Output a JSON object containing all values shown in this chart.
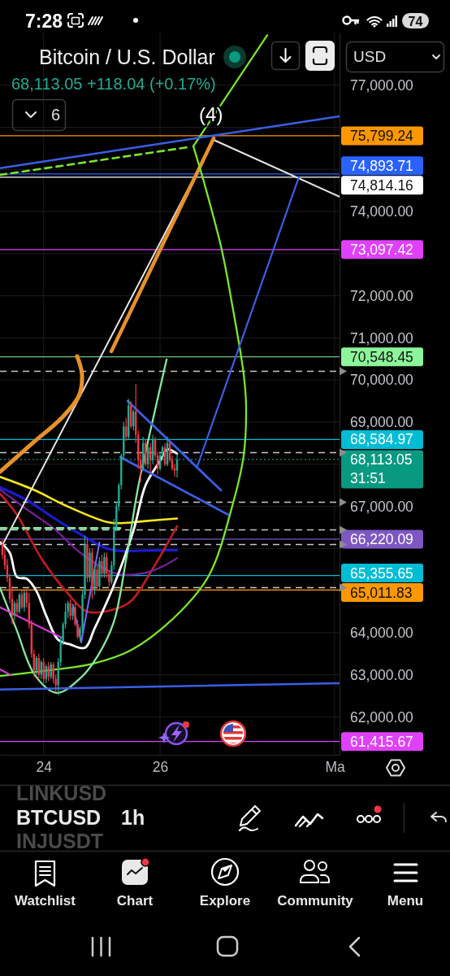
{
  "chart_data": {
    "type": "candlestick",
    "title": "Bitcoin / U.S. Dollar",
    "subtitle": "68,113.05 +118.04 (+0.17%)",
    "x": [
      23.292,
      23.333,
      23.375,
      23.417,
      23.458,
      23.5,
      23.542,
      23.583,
      23.625,
      23.667,
      23.708,
      23.75,
      23.792,
      23.833,
      23.875,
      23.917,
      23.958,
      24,
      24.042,
      24.083,
      24.125,
      24.167,
      24.208,
      24.25,
      24.292,
      24.333,
      24.375,
      24.417,
      24.458,
      24.5,
      24.542,
      24.583,
      24.625,
      24.667,
      24.708,
      24.75,
      24.792,
      24.833,
      24.875,
      24.917,
      24.958,
      25,
      25.042,
      25.083,
      25.125,
      25.167,
      25.208,
      25.25,
      25.292,
      25.333,
      25.375,
      25.417,
      25.458,
      25.5,
      25.542,
      25.583,
      25.625,
      25.667,
      25.708,
      25.75,
      25.792,
      25.833,
      25.875,
      25.917,
      25.958,
      26,
      26.042,
      26.083,
      26.125,
      26.167,
      26.208,
      26.25,
      26.292
    ],
    "ohlc": [
      [
        66100,
        66200,
        65750,
        65850
      ],
      [
        65850,
        66000,
        65500,
        65600
      ],
      [
        65600,
        65750,
        65200,
        65300
      ],
      [
        65300,
        65400,
        64700,
        64800
      ],
      [
        64800,
        65100,
        64200,
        64400
      ],
      [
        64400,
        64750,
        64300,
        64700
      ],
      [
        64700,
        64800,
        64400,
        64500
      ],
      [
        64500,
        64950,
        64450,
        64900
      ],
      [
        64900,
        65000,
        64550,
        64600
      ],
      [
        64600,
        65000,
        64500,
        64950
      ],
      [
        64950,
        65050,
        64600,
        64700
      ],
      [
        64700,
        64950,
        64100,
        64200
      ],
      [
        64200,
        64300,
        63400,
        63500
      ],
      [
        63500,
        63600,
        62950,
        63100
      ],
      [
        63100,
        63450,
        63000,
        63400
      ],
      [
        63400,
        63500,
        62900,
        63000
      ],
      [
        63000,
        63350,
        62900,
        63300
      ],
      [
        63300,
        63400,
        62800,
        62900
      ],
      [
        62900,
        63250,
        62800,
        63200
      ],
      [
        63200,
        63300,
        62850,
        62950
      ],
      [
        62950,
        63300,
        62900,
        63250
      ],
      [
        63250,
        63300,
        62800,
        62900
      ],
      [
        62900,
        63000,
        62600,
        62750
      ],
      [
        62750,
        63400,
        62520,
        63300
      ],
      [
        63300,
        63900,
        63200,
        63800
      ],
      [
        63800,
        64250,
        63700,
        64200
      ],
      [
        64200,
        64700,
        64100,
        64500
      ],
      [
        64500,
        64750,
        64350,
        64700
      ],
      [
        64700,
        64800,
        64300,
        64400
      ],
      [
        64400,
        64650,
        64300,
        64600
      ],
      [
        64600,
        64700,
        64150,
        64200
      ],
      [
        64200,
        64300,
        63850,
        63900
      ],
      [
        63900,
        64150,
        63800,
        64100
      ],
      [
        64100,
        65000,
        64000,
        64900
      ],
      [
        64900,
        66300,
        64800,
        66100
      ],
      [
        66100,
        66250,
        65200,
        65300
      ],
      [
        65300,
        66000,
        65200,
        65900
      ],
      [
        65900,
        66000,
        64800,
        65000
      ],
      [
        65000,
        65600,
        64900,
        65500
      ],
      [
        65500,
        65600,
        65000,
        65100
      ],
      [
        65100,
        65800,
        65000,
        65700
      ],
      [
        65700,
        65850,
        65300,
        65400
      ],
      [
        65400,
        65900,
        65300,
        65800
      ],
      [
        65800,
        65900,
        65300,
        65400
      ],
      [
        65400,
        65500,
        65100,
        65200
      ],
      [
        65200,
        65700,
        65150,
        65600
      ],
      [
        65600,
        66700,
        65500,
        66500
      ],
      [
        66500,
        67100,
        66400,
        67000
      ],
      [
        67000,
        67550,
        66900,
        67500
      ],
      [
        67500,
        68250,
        67400,
        68200
      ],
      [
        68200,
        69000,
        68100,
        68900
      ],
      [
        68900,
        69100,
        68550,
        68650
      ],
      [
        68650,
        69550,
        68600,
        69400
      ],
      [
        69400,
        69500,
        68850,
        68900
      ],
      [
        68900,
        69300,
        68800,
        69250
      ],
      [
        69250,
        69900,
        68500,
        68700
      ],
      [
        68700,
        68800,
        67900,
        68100
      ],
      [
        68100,
        68300,
        67580,
        67900
      ],
      [
        67900,
        68650,
        67850,
        68500
      ],
      [
        68500,
        68600,
        67950,
        68000
      ],
      [
        68000,
        68450,
        67900,
        68400
      ],
      [
        68400,
        68500,
        67800,
        68100
      ],
      [
        68100,
        68700,
        68000,
        68600
      ],
      [
        68600,
        68650,
        68150,
        68200
      ],
      [
        68200,
        68300,
        67750,
        67900
      ],
      [
        67900,
        68250,
        67850,
        68200
      ],
      [
        68200,
        68450,
        68100,
        68400
      ],
      [
        68400,
        68500,
        67950,
        68000
      ],
      [
        68000,
        68650,
        67950,
        68500
      ],
      [
        68500,
        68550,
        68050,
        68100
      ],
      [
        68100,
        68200,
        67850,
        67900
      ],
      [
        67900,
        68000,
        67700,
        67850
      ],
      [
        67850,
        68250,
        67680,
        68113.05
      ]
    ],
    "xlim": [
      23.25,
      29.083
    ],
    "xticks": [
      24,
      26,
      {
        "value": 29,
        "label": "Ma"
      }
    ],
    "ylim": [
      61100,
      78250
    ],
    "yticks": [
      {
        "value": 62000,
        "label": "62,000.00"
      },
      {
        "value": 63000,
        "label": "63,000.00"
      },
      {
        "value": 64000,
        "label": "64,000.00"
      },
      {
        "value": 65000,
        "label": null
      },
      {
        "value": 66000,
        "label": null
      },
      {
        "value": 67000,
        "label": "67,000.00"
      },
      {
        "value": 68000,
        "label": null
      },
      {
        "value": 69000,
        "label": "69,000.00"
      },
      {
        "value": 70000,
        "label": "70,000.00"
      },
      {
        "value": 71000,
        "label": "71,000.00"
      },
      {
        "value": 72000,
        "label": "72,000.00"
      },
      {
        "value": 73000,
        "label": null
      },
      {
        "value": 74000,
        "label": "74,000.00"
      },
      {
        "value": 75000,
        "label": null
      },
      {
        "value": 76000,
        "label": null
      },
      {
        "value": 77000,
        "label": "77,000.00"
      }
    ],
    "grid": true,
    "series": [
      {
        "type": "line",
        "x": [
          23.25,
          23.833,
          24.375,
          25.083,
          25.333,
          25.75,
          26.292
        ],
        "values": [
          67700,
          67390,
          67020,
          66630,
          66600,
          66650,
          66710
        ],
        "color": "#f5e71d"
      },
      {
        "type": "line",
        "x": [
          23.25,
          23.708,
          24.167,
          24.625,
          25.083,
          25.333,
          25.75,
          26.292
        ],
        "values": [
          67450,
          67150,
          66730,
          66340,
          66000,
          65940,
          65950,
          65960
        ],
        "color": "#1b1bd0"
      },
      {
        "type": "line",
        "x": [
          23.25,
          23.542,
          23.958,
          24.417,
          24.75,
          25.208,
          25.5,
          25.875,
          26.292
        ],
        "values": [
          67300,
          66800,
          65770,
          64930,
          64500,
          64550,
          64750,
          65520,
          66530
        ],
        "color": "#c41c1c"
      },
      {
        "type": "line",
        "x": [
          23.25,
          23.708,
          24.167,
          24.625,
          25.125,
          25.333,
          25.75,
          26.042,
          26.292
        ],
        "values": [
          67400,
          66930,
          66480,
          65900,
          65460,
          65380,
          65420,
          65570,
          65770
        ],
        "color": "#7a1fa0"
      },
      {
        "type": "line",
        "x": [
          23.25,
          23.417,
          23.542,
          23.708,
          23.875,
          24.042,
          24.25,
          24.458,
          24.708,
          24.875,
          25.167,
          25.542,
          25.75,
          26,
          26.125,
          26.292
        ],
        "values": [
          66150,
          65900,
          65320,
          65280,
          64990,
          64410,
          63830,
          63720,
          63640,
          64100,
          64990,
          66420,
          67500,
          68080,
          68350,
          68250
        ],
        "color": "#ffffff"
      },
      {
        "type": "line",
        "x": [
          23.292,
          26.921,
          29.083
        ],
        "values": [
          66080,
          75700,
          74350
        ],
        "color": "#e6e6e6"
      },
      {
        "type": "line",
        "x": [
          25.163,
          26.921
        ],
        "values": [
          70680,
          75740
        ],
        "color": "#e8902a"
      },
      {
        "type": "line",
        "x": [
          23.25,
          23.808,
          24.296,
          24.604,
          24.658,
          24.575
        ],
        "values": [
          67820,
          68500,
          69080,
          69620,
          70140,
          70560
        ],
        "color": "#e8902a"
      },
      {
        "type": "line",
        "x": [
          23.25,
          24.227,
          24.841,
          25.483,
          26.236,
          26.836,
          27.241,
          27.436,
          27.478,
          27.436,
          27.227,
          27.06,
          26.739,
          26.571
        ],
        "values": [
          62970,
          63130,
          63260,
          63570,
          64350,
          65350,
          67010,
          68210,
          69370,
          70140,
          71880,
          73090,
          74770,
          75550
        ],
        "color": "#7ae62b"
      },
      {
        "type": "line",
        "x": [
          26.571,
          27.842
        ],
        "values": [
          75550,
          78190
        ],
        "color": "#7ae62b"
      },
      {
        "type": "line",
        "x": [
          23.25,
          26.5
        ],
        "values": [
          74870,
          75530
        ],
        "color": "#7ae62b",
        "line_style": "dashed"
      },
      {
        "type": "line",
        "x": [
          23.25,
          23.529,
          23.85,
          24.225,
          24.646,
          24.925,
          25.204,
          25.413,
          25.621,
          25.833,
          26.113
        ],
        "values": [
          65060,
          64090,
          62990,
          62570,
          62940,
          63440,
          64250,
          65700,
          67440,
          68790,
          70490
        ],
        "color": "#86e8a0"
      },
      {
        "type": "line",
        "x": [
          23.25,
          25.333
        ],
        "values": [
          66480,
          66480
        ],
        "color": "#86e8a0",
        "line_style": "dashed"
      },
      {
        "type": "line",
        "x": [
          23.25,
          29.083
        ],
        "values": [
          75030,
          76260
        ],
        "color": "#3a5fe5"
      },
      {
        "type": "line",
        "x": [
          26.642,
          28.383
        ],
        "values": [
          67960,
          74810
        ],
        "color": "#3a5fe5"
      },
      {
        "type": "line",
        "x": [
          25.442,
          27.046
        ],
        "values": [
          69500,
          67380
        ],
        "color": "#3a5fe5"
      },
      {
        "type": "line",
        "x": [
          25.317,
          27.171
        ],
        "values": [
          68170,
          66800
        ],
        "color": "#3a5fe5"
      },
      {
        "type": "line",
        "x": [
          23.25,
          29.083
        ],
        "values": [
          62650,
          62800
        ],
        "color": "#3a5fe5"
      },
      {
        "type": "line",
        "x": [
          24.5,
          24.646,
          24.958
        ],
        "values": [
          64670,
          63770,
          66140
        ],
        "color": "#7b6cf0"
      },
      {
        "type": "line",
        "x": [
          23.25,
          24.31
        ],
        "values": [
          64600,
          63880
        ],
        "color": "#d63ad6"
      },
      {
        "type": "line",
        "x": [
          23.25,
          23.438
        ],
        "values": [
          63130,
          62990
        ],
        "color": "#d63ad6"
      }
    ],
    "ref_lines": [
      {
        "axis": "y",
        "value": 75799.24,
        "label": "75,799.24",
        "color": "#ff9800"
      },
      {
        "axis": "y",
        "value": 74893.71,
        "label": "74,893.71",
        "color": "#2962ff"
      },
      {
        "axis": "y",
        "value": 74814.16,
        "label": "74,814.16",
        "color": "#ffffff"
      },
      {
        "axis": "y",
        "value": 73097.42,
        "label": "73,097.42",
        "color": "#e040fb"
      },
      {
        "axis": "y",
        "value": 70548.45,
        "label": "70,548.45",
        "color": "#8cf59a"
      },
      {
        "axis": "y",
        "value": 68584.97,
        "label": "68,584.97",
        "color": "#00bcd4"
      },
      {
        "axis": "y",
        "value": 68113.05,
        "label": "68,113.05",
        "color": "#089981",
        "line_style": "dotted"
      },
      {
        "axis": "y",
        "value": 66220.09,
        "label": "66,220.09",
        "color": "#7e57c2"
      },
      {
        "axis": "y",
        "value": 65355.65,
        "label": "65,355.65",
        "color": "#00bcd4"
      },
      {
        "axis": "y",
        "value": 65011.83,
        "label": "65,011.83",
        "color": "#ff9800"
      },
      {
        "axis": "y",
        "value": 61415.67,
        "label": "61,415.67",
        "color": "#e040fb"
      },
      {
        "axis": "y",
        "value": 70205,
        "color": "#c8c8c8",
        "line_style": "dashed"
      },
      {
        "axis": "y",
        "value": 68274,
        "color": "#c8c8c8",
        "line_style": "dashed"
      },
      {
        "axis": "y",
        "value": 67096,
        "color": "#c8c8c8",
        "line_style": "dashed"
      },
      {
        "axis": "y",
        "value": 66440,
        "color": "#c8c8c8",
        "line_style": "dashed"
      },
      {
        "axis": "y",
        "value": 66093,
        "color": "#c8c8c8",
        "line_style": "dashed"
      },
      {
        "axis": "y",
        "value": 65070,
        "color": "#c8c8c8",
        "line_style": "dashed"
      }
    ],
    "annotations": [
      "7:28",
      "74",
      "6",
      "USD",
      {
        "text": "(4)",
        "x": 26.875,
        "y": 76300
      },
      "31:51",
      "LINKUSD",
      "BTCUSD",
      "INJUSDT",
      "1h",
      "Watchlist",
      "Chart",
      "Explore",
      "Community",
      "Menu"
    ]
  }
}
